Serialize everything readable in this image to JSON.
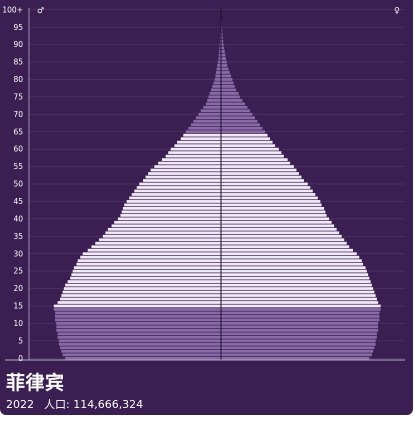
{
  "title": "菲律宾",
  "year": "2022",
  "population_label": "人口: 114,666,324",
  "male_symbol": "♂",
  "female_symbol": "♀",
  "colors": {
    "background": "#3b1f52",
    "bar_light": "#f1e9f6",
    "bar_dark": "#8a6aa6",
    "grid": "#56406a",
    "axis": "#b9a8c8"
  },
  "chart_data": {
    "type": "bar",
    "orientation": "horizontal-pyramid",
    "title": "菲律宾",
    "ylabels": [
      "0",
      "5",
      "10",
      "15",
      "20",
      "25",
      "30",
      "35",
      "40",
      "45",
      "50",
      "55",
      "60",
      "65",
      "70",
      "75",
      "80",
      "85",
      "90",
      "95",
      "100+"
    ],
    "ages": [
      0,
      1,
      2,
      3,
      4,
      5,
      6,
      7,
      8,
      9,
      10,
      11,
      12,
      13,
      14,
      15,
      16,
      17,
      18,
      19,
      20,
      21,
      22,
      23,
      24,
      25,
      26,
      27,
      28,
      29,
      30,
      31,
      32,
      33,
      34,
      35,
      36,
      37,
      38,
      39,
      40,
      41,
      42,
      43,
      44,
      45,
      46,
      47,
      48,
      49,
      50,
      51,
      52,
      53,
      54,
      55,
      56,
      57,
      58,
      59,
      60,
      61,
      62,
      63,
      64,
      65,
      66,
      67,
      68,
      69,
      70,
      71,
      72,
      73,
      74,
      75,
      76,
      77,
      78,
      79,
      80,
      81,
      82,
      83,
      84,
      85,
      86,
      87,
      88,
      89,
      90,
      91,
      92,
      93,
      94,
      95,
      96,
      97,
      98,
      99,
      100
    ],
    "highlight_ages": [
      [
        0,
        14
      ],
      [
        65,
        100
      ]
    ],
    "series": [
      {
        "side": "left",
        "values": [
          1.24,
          1.26,
          1.27,
          1.28,
          1.29,
          1.29,
          1.3,
          1.3,
          1.31,
          1.31,
          1.31,
          1.32,
          1.32,
          1.32,
          1.33,
          1.33,
          1.3,
          1.28,
          1.27,
          1.26,
          1.25,
          1.24,
          1.22,
          1.2,
          1.19,
          1.18,
          1.17,
          1.15,
          1.14,
          1.12,
          1.1,
          1.06,
          1.03,
          1.0,
          0.97,
          0.94,
          0.92,
          0.9,
          0.87,
          0.85,
          0.82,
          0.8,
          0.79,
          0.78,
          0.77,
          0.75,
          0.73,
          0.71,
          0.69,
          0.67,
          0.65,
          0.62,
          0.6,
          0.58,
          0.56,
          0.53,
          0.5,
          0.47,
          0.44,
          0.42,
          0.4,
          0.37,
          0.35,
          0.32,
          0.3,
          0.28,
          0.26,
          0.24,
          0.22,
          0.2,
          0.18,
          0.16,
          0.14,
          0.12,
          0.11,
          0.1,
          0.09,
          0.08,
          0.07,
          0.06,
          0.05,
          0.045,
          0.04,
          0.035,
          0.03,
          0.025,
          0.02,
          0.018,
          0.015,
          0.012,
          0.01,
          0.008,
          0.007,
          0.006,
          0.005,
          0.004,
          0.003,
          0.002,
          0.0015,
          0.001,
          0.001
        ]
      },
      {
        "side": "right",
        "values": [
          1.18,
          1.2,
          1.21,
          1.22,
          1.23,
          1.23,
          1.24,
          1.24,
          1.25,
          1.25,
          1.25,
          1.26,
          1.26,
          1.26,
          1.27,
          1.27,
          1.25,
          1.24,
          1.23,
          1.22,
          1.21,
          1.2,
          1.19,
          1.18,
          1.17,
          1.16,
          1.15,
          1.13,
          1.12,
          1.1,
          1.08,
          1.05,
          1.02,
          1.0,
          0.98,
          0.96,
          0.94,
          0.92,
          0.9,
          0.88,
          0.86,
          0.84,
          0.83,
          0.82,
          0.8,
          0.79,
          0.77,
          0.75,
          0.73,
          0.71,
          0.69,
          0.66,
          0.64,
          0.62,
          0.6,
          0.58,
          0.55,
          0.53,
          0.5,
          0.48,
          0.46,
          0.43,
          0.41,
          0.39,
          0.37,
          0.35,
          0.33,
          0.31,
          0.29,
          0.27,
          0.25,
          0.23,
          0.21,
          0.19,
          0.17,
          0.15,
          0.14,
          0.12,
          0.11,
          0.1,
          0.09,
          0.08,
          0.07,
          0.06,
          0.05,
          0.045,
          0.04,
          0.035,
          0.03,
          0.025,
          0.02,
          0.017,
          0.014,
          0.012,
          0.01,
          0.008,
          0.006,
          0.005,
          0.004,
          0.003,
          0.002
        ]
      }
    ],
    "xlim": [
      0,
      1.4
    ]
  }
}
